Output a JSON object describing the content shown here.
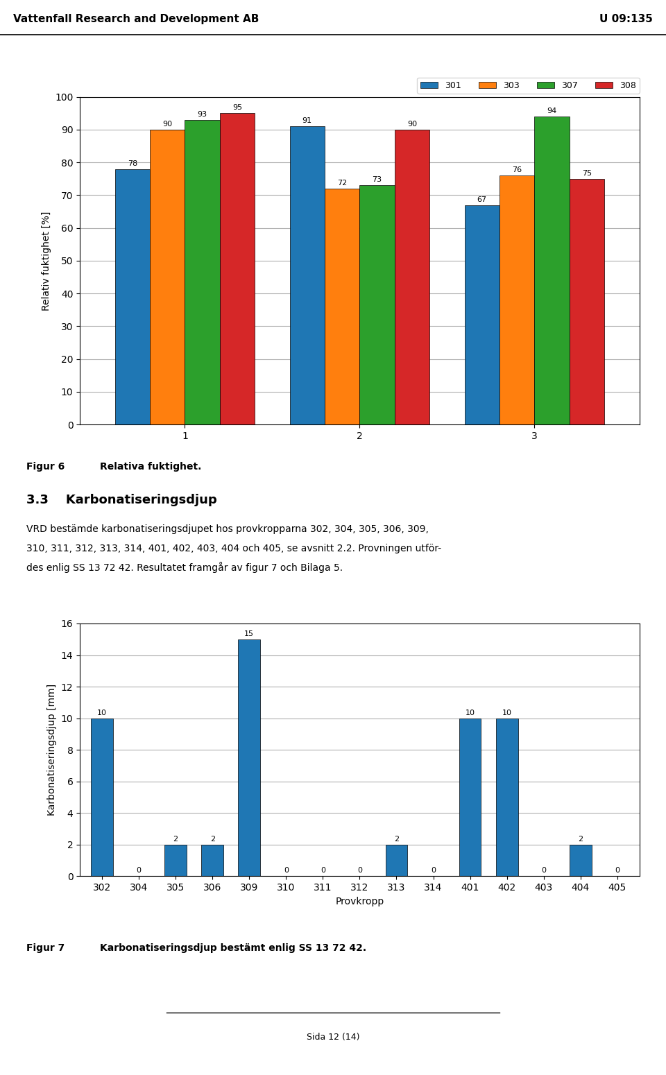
{
  "header": {
    "left": "Vattenfall Research and Development AB",
    "right": "U 09:135"
  },
  "footer": "Sida 12 (14)",
  "section_title": "3.3    Karbonatiseringsdjup",
  "body_text": [
    "VRD bestämde karbonatiseringsdjupet hos provkropparna 302, 304, 305, 306, 309,",
    "310, 311, 312, 313, 314, 401, 402, 403, 404 och 405, se avsnitt 2.2. Provningen utför-",
    "des enlig SS 13 72 42. Resultatet framgår av figur 7 och Bilaga 5."
  ],
  "chart_data": [
    {
      "type": "bar",
      "caption": {
        "label": "Figur 6",
        "text": "Relativa fuktighet."
      },
      "categories": [
        "1",
        "2",
        "3"
      ],
      "series": [
        {
          "name": "301",
          "values": [
            78,
            91,
            67
          ]
        },
        {
          "name": "303",
          "values": [
            90,
            72,
            76
          ]
        },
        {
          "name": "307",
          "values": [
            93,
            73,
            94
          ]
        },
        {
          "name": "308",
          "values": [
            95,
            90,
            75
          ]
        }
      ],
      "ylabel": "Relativ fuktighet [%]",
      "ylim": [
        0,
        100
      ],
      "yticks": [
        0,
        10,
        20,
        30,
        40,
        50,
        60,
        70,
        80,
        90,
        100
      ],
      "grid": true,
      "legend": "upper right",
      "data_labels": true
    },
    {
      "type": "bar",
      "caption": {
        "label": "Figur 7",
        "text": "Karbonatiseringsdjup bestämt enlig SS 13 72 42."
      },
      "categories": [
        "302",
        "304",
        "305",
        "306",
        "309",
        "310",
        "311",
        "312",
        "313",
        "314",
        "401",
        "402",
        "403",
        "404",
        "405"
      ],
      "values": [
        10,
        0,
        2,
        2,
        15,
        0,
        0,
        0,
        2,
        0,
        10,
        10,
        0,
        2,
        0
      ],
      "ylabel": "Karbonatiseringsdjup [mm]",
      "xlabel": "Provkropp",
      "ylim": [
        0,
        16
      ],
      "yticks": [
        0,
        2,
        4,
        6,
        8,
        10,
        12,
        14,
        16
      ],
      "grid": true,
      "data_labels": true
    }
  ]
}
